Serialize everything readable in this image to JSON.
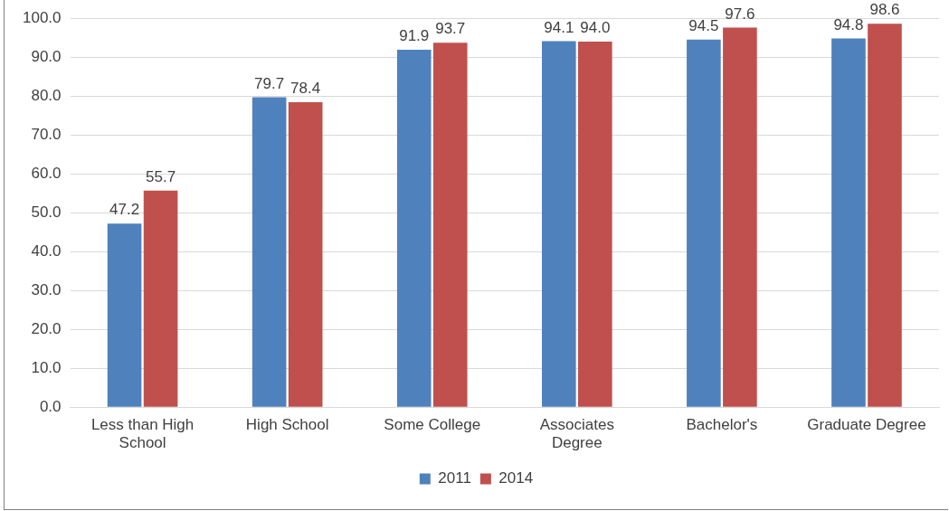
{
  "chart_data": {
    "type": "bar",
    "categories": [
      "Less than High School",
      "High School",
      "Some College",
      "Associates Degree",
      "Bachelor's",
      "Graduate Degree"
    ],
    "series": [
      {
        "name": "2011",
        "color": "#4f81bd",
        "values": [
          47.2,
          79.7,
          91.9,
          94.1,
          94.5,
          94.8
        ],
        "value_labels": [
          "47.2",
          "79.7",
          "91.9",
          "94.1",
          "94.5",
          "94.8"
        ]
      },
      {
        "name": "2014",
        "color": "#c0504d",
        "values": [
          55.7,
          78.4,
          93.7,
          94.0,
          97.6,
          98.6
        ],
        "value_labels": [
          "55.7",
          "78.4",
          "93.7",
          "94.0",
          "97.6",
          "98.6"
        ]
      }
    ],
    "ylim": [
      0,
      100
    ],
    "yticks": [
      {
        "value": 0,
        "label": "0.0"
      },
      {
        "value": 10,
        "label": "10.0"
      },
      {
        "value": 20,
        "label": "20.0"
      },
      {
        "value": 30,
        "label": "30.0"
      },
      {
        "value": 40,
        "label": "40.0"
      },
      {
        "value": 50,
        "label": "50.0"
      },
      {
        "value": 60,
        "label": "60.0"
      },
      {
        "value": 70,
        "label": "70.0"
      },
      {
        "value": 80,
        "label": "80.0"
      },
      {
        "value": 90,
        "label": "90.0"
      },
      {
        "value": 100,
        "label": "100.0"
      }
    ],
    "grid": "y",
    "legend": "bottom"
  }
}
